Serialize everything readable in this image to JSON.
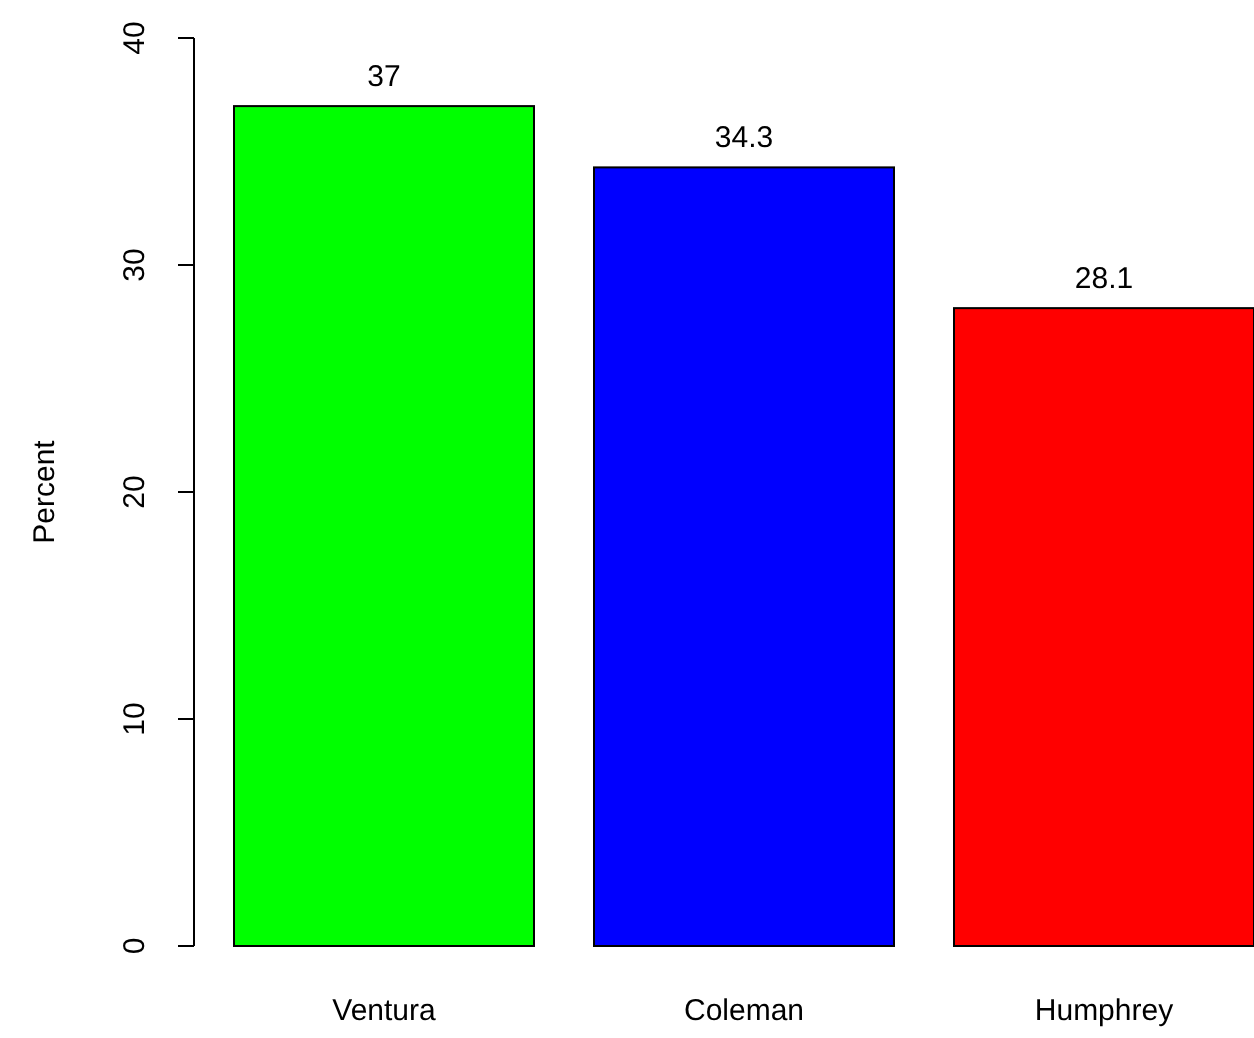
{
  "chart_data": {
    "type": "bar",
    "ylabel": "Percent",
    "categories": [
      "Ventura",
      "Coleman",
      "Humphrey"
    ],
    "values": [
      37,
      34.3,
      28.1
    ],
    "colors": [
      "#00ff00",
      "#0000ff",
      "#ff0000"
    ],
    "ylim": [
      0,
      40
    ],
    "yticks": [
      0,
      10,
      20,
      30,
      40
    ],
    "data_labels": true
  }
}
